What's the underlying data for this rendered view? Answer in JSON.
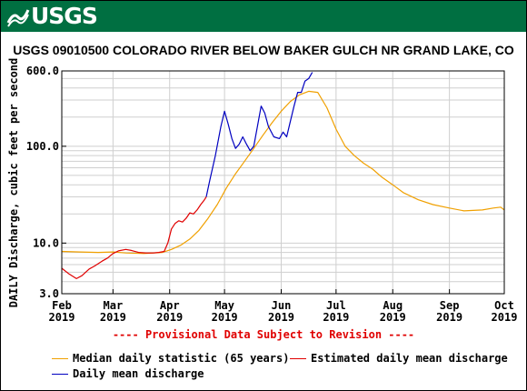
{
  "header": {
    "logo_text": "USGS"
  },
  "chart_data": {
    "type": "line",
    "title": "USGS 09010500 COLORADO RIVER BELOW BAKER GULCH NR GRAND LAKE, CO",
    "ylabel": "DAILY Discharge, cubic feet per second",
    "yscale": "log",
    "ylim": [
      3.0,
      600.0
    ],
    "y_ticks": [
      "600.0",
      "100.0",
      "10.0",
      "3.0"
    ],
    "y_tick_values": [
      600,
      100,
      10,
      3
    ],
    "x_domain_days": [
      0,
      242
    ],
    "x_ticks": [
      {
        "line1": "Feb",
        "line2": "2019",
        "day": 0
      },
      {
        "line1": "Mar",
        "line2": "2019",
        "day": 28
      },
      {
        "line1": "Apr",
        "line2": "2019",
        "day": 59
      },
      {
        "line1": "May",
        "line2": "2019",
        "day": 89
      },
      {
        "line1": "Jun",
        "line2": "2019",
        "day": 120
      },
      {
        "line1": "Jul",
        "line2": "2019",
        "day": 150
      },
      {
        "line1": "Aug",
        "line2": "2019",
        "day": 181
      },
      {
        "line1": "Sep",
        "line2": "2019",
        "day": 212
      },
      {
        "line1": "Oct",
        "line2": "2019",
        "day": 242
      }
    ],
    "grid": true,
    "legend_position": "bottom",
    "series": [
      {
        "name": "Median daily statistic (65 years)",
        "color": "#f0a000",
        "x": [
          0,
          10,
          20,
          28,
          35,
          45,
          55,
          60,
          65,
          70,
          75,
          80,
          85,
          90,
          95,
          100,
          105,
          110,
          115,
          120,
          125,
          130,
          135,
          140,
          145,
          150,
          155,
          160,
          165,
          170,
          175,
          181,
          187,
          195,
          203,
          212,
          220,
          230,
          236,
          240,
          242
        ],
        "y": [
          8.2,
          8.1,
          8.0,
          8.1,
          7.9,
          7.8,
          8.0,
          8.6,
          9.5,
          11,
          13.5,
          18,
          25,
          37,
          52,
          70,
          95,
          130,
          175,
          230,
          290,
          340,
          370,
          360,
          250,
          150,
          100,
          80,
          67,
          58,
          48,
          40,
          33,
          28,
          25,
          23,
          21.5,
          22,
          23,
          23.5,
          22
        ]
      },
      {
        "name": "Estimated daily mean discharge",
        "color": "#e00000",
        "x": [
          0,
          4,
          8,
          11,
          15,
          18,
          22,
          25,
          28,
          31,
          35,
          38,
          42,
          46,
          50,
          53,
          56,
          58,
          60,
          62,
          64,
          66,
          68,
          70,
          72,
          74,
          76,
          78,
          79
        ],
        "y": [
          5.5,
          4.8,
          4.3,
          4.6,
          5.4,
          5.8,
          6.5,
          7.0,
          7.8,
          8.3,
          8.6,
          8.4,
          8.0,
          7.9,
          7.9,
          8.0,
          8.2,
          10,
          14,
          16,
          17,
          16.5,
          18,
          20.5,
          20,
          22,
          25,
          28,
          30
        ]
      },
      {
        "name": "Daily mean discharge",
        "color": "#0000c0",
        "x": [
          79,
          81,
          84,
          87,
          89,
          91,
          93,
          95,
          97,
          99,
          101,
          103,
          105,
          107,
          109,
          111,
          113,
          116,
          119,
          121,
          123,
          125,
          127,
          129,
          131,
          133,
          135,
          137
        ],
        "y": [
          30,
          45,
          80,
          160,
          230,
          170,
          120,
          95,
          105,
          125,
          105,
          90,
          100,
          160,
          260,
          220,
          160,
          125,
          120,
          140,
          125,
          180,
          260,
          360,
          360,
          470,
          500,
          580
        ]
      }
    ]
  },
  "footer": {
    "provisional_note": "---- Provisional Data Subject to Revision ----"
  }
}
